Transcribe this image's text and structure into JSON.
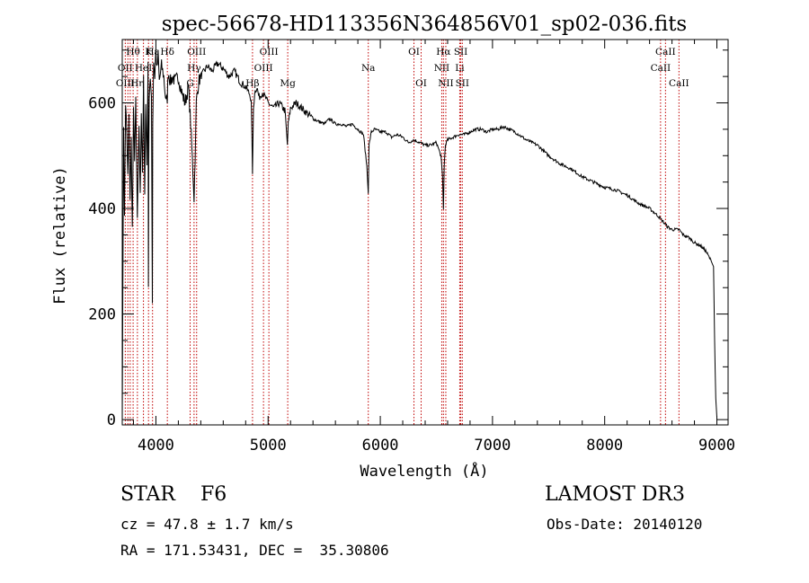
{
  "chart_data": {
    "type": "line",
    "title": "spec-56678-HD113356N364856V01_sp02-036.fits",
    "xlabel": "Wavelength (Å)",
    "ylabel": "Flux (relative)",
    "xlim": [
      3700,
      9100
    ],
    "ylim": [
      -10,
      720
    ],
    "xticks": [
      4000,
      5000,
      6000,
      7000,
      8000,
      9000
    ],
    "xtick_labels": [
      "4000",
      "5000",
      "6000",
      "7000",
      "8000",
      "9000"
    ],
    "yticks": [
      0,
      200,
      400,
      600
    ],
    "ytick_labels": [
      "0",
      "200",
      "400",
      "600"
    ],
    "series": [
      {
        "name": "flux",
        "x": [
          3700,
          3705,
          3712,
          3720,
          3730,
          3740,
          3750,
          3760,
          3770,
          3780,
          3790,
          3800,
          3810,
          3820,
          3835,
          3850,
          3860,
          3870,
          3880,
          3890,
          3900,
          3910,
          3920,
          3930,
          3933,
          3936,
          3940,
          3950,
          3960,
          3968,
          3972,
          3980,
          3990,
          4000,
          4010,
          4020,
          4030,
          4050,
          4070,
          4090,
          4101,
          4110,
          4130,
          4150,
          4170,
          4200,
          4230,
          4260,
          4290,
          4310,
          4330,
          4340,
          4350,
          4360,
          4380,
          4400,
          4430,
          4460,
          4500,
          4550,
          4600,
          4650,
          4700,
          4750,
          4800,
          4840,
          4850,
          4861,
          4870,
          4880,
          4900,
          4920,
          4950,
          5000,
          5050,
          5100,
          5150,
          5172,
          5180,
          5200,
          5250,
          5300,
          5350,
          5400,
          5450,
          5500,
          5550,
          5600,
          5650,
          5700,
          5750,
          5800,
          5850,
          5880,
          5893,
          5900,
          5920,
          5950,
          6000,
          6050,
          6100,
          6150,
          6200,
          6250,
          6300,
          6350,
          6400,
          6450,
          6500,
          6540,
          6555,
          6563,
          6570,
          6580,
          6600,
          6650,
          6700,
          6750,
          6800,
          6850,
          6900,
          6950,
          7000,
          7050,
          7100,
          7150,
          7200,
          7300,
          7400,
          7500,
          7600,
          7700,
          7800,
          7900,
          8000,
          8100,
          8200,
          8300,
          8400,
          8480,
          8500,
          8542,
          8560,
          8600,
          8662,
          8700,
          8750,
          8800,
          8850,
          8900,
          8950,
          8970,
          8980,
          8990,
          9000
        ],
        "values": [
          5,
          220,
          560,
          380,
          600,
          540,
          460,
          570,
          420,
          530,
          360,
          580,
          500,
          600,
          380,
          560,
          420,
          590,
          470,
          640,
          420,
          610,
          480,
          680,
          260,
          480,
          620,
          650,
          600,
          230,
          560,
          680,
          650,
          700,
          660,
          690,
          640,
          670,
          650,
          600,
          610,
          660,
          640,
          650,
          640,
          650,
          620,
          600,
          630,
          560,
          470,
          420,
          500,
          600,
          640,
          650,
          660,
          670,
          660,
          675,
          665,
          650,
          660,
          640,
          630,
          615,
          600,
          470,
          590,
          620,
          630,
          610,
          620,
          600,
          590,
          600,
          585,
          520,
          560,
          590,
          600,
          590,
          580,
          570,
          565,
          560,
          570,
          560,
          560,
          555,
          560,
          550,
          540,
          480,
          430,
          520,
          545,
          550,
          545,
          545,
          535,
          540,
          535,
          525,
          530,
          525,
          520,
          520,
          525,
          500,
          460,
          400,
          480,
          520,
          530,
          535,
          540,
          540,
          545,
          550,
          550,
          545,
          550,
          550,
          555,
          550,
          545,
          530,
          520,
          500,
          485,
          475,
          460,
          450,
          440,
          435,
          425,
          410,
          400,
          385,
          380,
          370,
          365,
          360,
          360,
          350,
          345,
          335,
          330,
          320,
          300,
          290,
          150,
          40,
          5
        ]
      }
    ],
    "line_markers": [
      {
        "label": "Hθ",
        "wl": 3797,
        "row": 0
      },
      {
        "label": "OII",
        "wl": 3727,
        "row": 1
      },
      {
        "label": "OIII",
        "wl": 3727,
        "row": 2
      },
      {
        "label": "K",
        "wl": 3934,
        "row": 0
      },
      {
        "label": "HeI",
        "wl": 3889,
        "row": 1
      },
      {
        "label": "Hη",
        "wl": 3835,
        "row": 2
      },
      {
        "label": "Hε",
        "wl": 3970,
        "row": 0
      },
      {
        "label": "Hδ",
        "wl": 4102,
        "row": 0
      },
      {
        "label": "OIII",
        "wl": 4363,
        "row": 0
      },
      {
        "label": "Hγ",
        "wl": 4340,
        "row": 1
      },
      {
        "label": "G",
        "wl": 4305,
        "row": 2
      },
      {
        "label": "OIII",
        "wl": 5007,
        "row": 0
      },
      {
        "label": "OIII",
        "wl": 4959,
        "row": 1
      },
      {
        "label": "Hβ",
        "wl": 4861,
        "row": 2
      },
      {
        "label": "Mg",
        "wl": 5175,
        "row": 2
      },
      {
        "label": "Na",
        "wl": 5893,
        "row": 1
      },
      {
        "label": "OI",
        "wl": 6300,
        "row": 0
      },
      {
        "label": "OI",
        "wl": 6364,
        "row": 2
      },
      {
        "label": "Hα",
        "wl": 6563,
        "row": 0
      },
      {
        "label": "SII",
        "wl": 6717,
        "row": 0
      },
      {
        "label": "NII",
        "wl": 6548,
        "row": 1
      },
      {
        "label": "Li",
        "wl": 6708,
        "row": 1
      },
      {
        "label": "NII",
        "wl": 6584,
        "row": 2
      },
      {
        "label": "SII",
        "wl": 6731,
        "row": 2
      },
      {
        "label": "CaII",
        "wl": 8542,
        "row": 0
      },
      {
        "label": "CaII",
        "wl": 8498,
        "row": 1
      },
      {
        "label": "CaII",
        "wl": 8662,
        "row": 2
      }
    ],
    "extra_line_wls": [
      3750,
      3771
    ],
    "grid": false,
    "legend": "none"
  },
  "colors": {
    "line": "#000000",
    "marker_line": "#c00000",
    "axis": "#000000",
    "background": "#ffffff"
  },
  "info": {
    "star": "STAR    F6",
    "survey": "LAMOST DR3",
    "cz": "cz = 47.8 ± 1.7 km/s",
    "obs_date": "Obs-Date: 20140120",
    "radec": "RA = 171.53431, DEC =  35.30806"
  }
}
